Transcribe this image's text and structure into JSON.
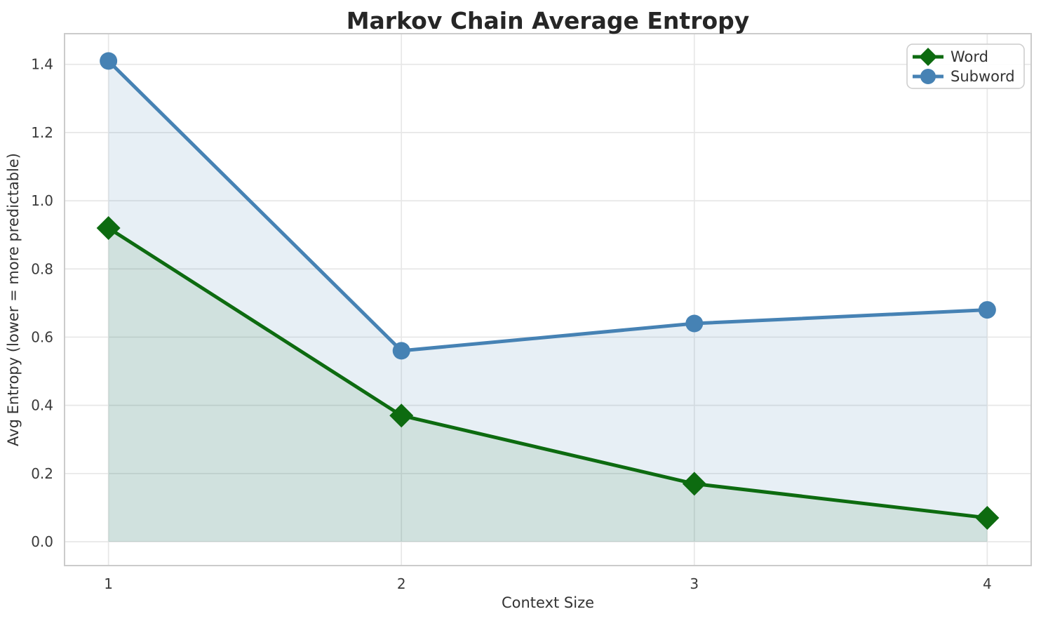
{
  "figure": {
    "title": "Markov Chain Average Entropy",
    "xlabel": "Context Size",
    "ylabel": "Avg Entropy (lower = more predictable)"
  },
  "chart_data": {
    "type": "line",
    "title": "Markov Chain Average Entropy",
    "xlabel": "Context Size",
    "ylabel": "Avg Entropy (lower = more predictable)",
    "x": [
      1,
      2,
      3,
      4
    ],
    "series": [
      {
        "name": "Word",
        "values": [
          0.92,
          0.37,
          0.17,
          0.07
        ],
        "color": "#0d6b10",
        "marker": "diamond",
        "fill_alpha": 0.1
      },
      {
        "name": "Subword",
        "values": [
          1.41,
          0.56,
          0.64,
          0.68
        ],
        "color": "#4682b4",
        "marker": "circle",
        "fill_alpha": 0.13
      }
    ],
    "xticks": [
      1,
      2,
      3,
      4
    ],
    "xtick_labels": [
      "1",
      "2",
      "3",
      "4"
    ],
    "yticks": [
      0.0,
      0.2,
      0.4,
      0.6,
      0.8,
      1.0,
      1.2,
      1.4
    ],
    "ytick_labels": [
      "0.0",
      "0.2",
      "0.4",
      "0.6",
      "0.8",
      "1.0",
      "1.2",
      "1.4"
    ],
    "xlim": [
      0.85,
      4.15
    ],
    "ylim": [
      -0.07,
      1.49
    ],
    "grid": true,
    "area_fill_baseline": 0,
    "legend_position": "upper right",
    "grid_color": "#e7e7e7",
    "spine_color": "#cbcbcb",
    "legend_border_color": "#cccccc"
  }
}
